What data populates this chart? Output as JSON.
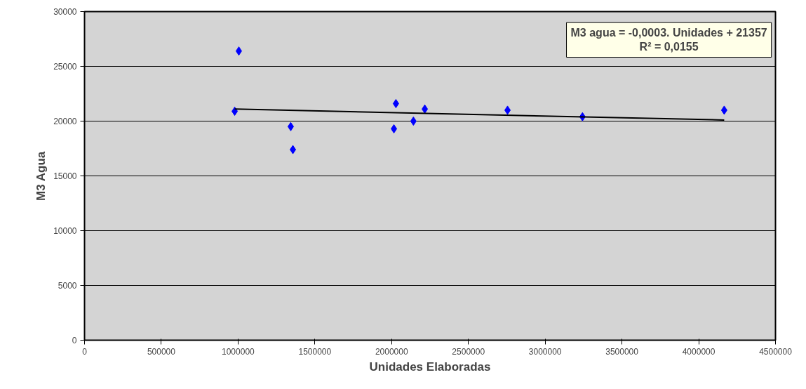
{
  "chart_data": {
    "type": "scatter",
    "xlabel": "Unidades Elaboradas",
    "ylabel": "M3 Agua",
    "annotations": [
      "M3 agua = -0,0003. Unidades + 21357\nR² = 0,0155"
    ],
    "series": [
      {
        "color": "#0000ff",
        "marker": "diamond",
        "x": [
          978000,
          1005000,
          1343000,
          1357000,
          2015000,
          2028000,
          2142000,
          2216000,
          2755000,
          3243000,
          4166000
        ],
        "values": [
          20900,
          26400,
          19500,
          17400,
          19300,
          21600,
          20000,
          21100,
          21000,
          20400,
          21000
        ]
      },
      {
        "type": "line",
        "color": "#000000",
        "line_style": "solid",
        "x": [
          978000,
          4166000
        ],
        "values": [
          21100,
          20100
        ]
      }
    ],
    "xlim": [
      0,
      4500000
    ],
    "xticks": [
      0,
      500000,
      1000000,
      1500000,
      2000000,
      2500000,
      3000000,
      3500000,
      4000000,
      4500000
    ],
    "ylim": [
      0,
      30000
    ],
    "yticks": [
      0,
      5000,
      10000,
      15000,
      20000,
      25000,
      30000
    ],
    "grid": "y"
  }
}
